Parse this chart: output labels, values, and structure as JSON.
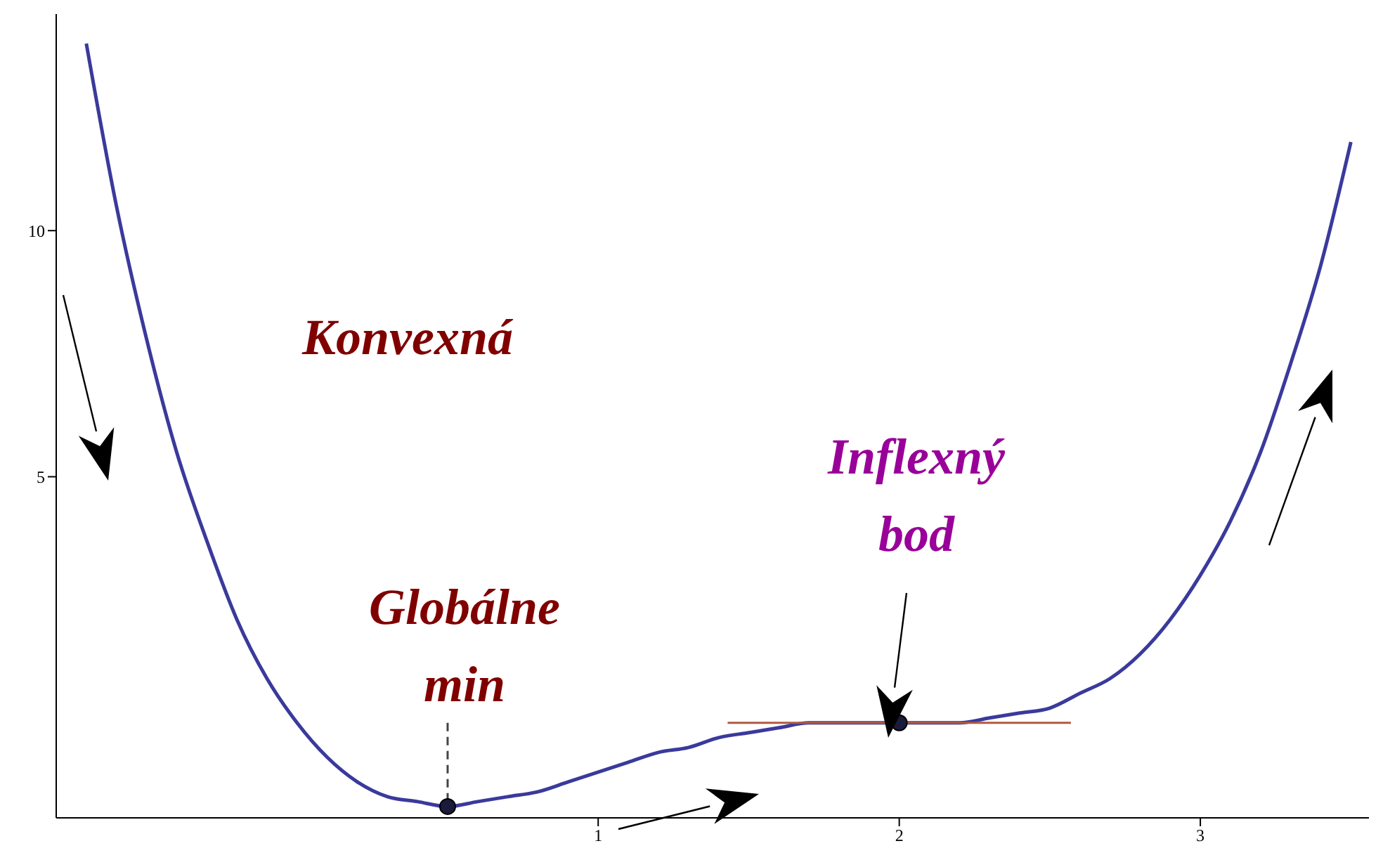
{
  "chart_data": {
    "type": "line",
    "xlim": [
      -0.8,
      3.56
    ],
    "ylim": [
      -1.93,
      14.4
    ],
    "xticks": [
      1,
      2,
      3
    ],
    "yticks": [
      5,
      10
    ],
    "grid": false,
    "annotations": [
      "Konvexná",
      {
        "text": "Globálne min",
        "x": 0.5,
        "y": -1.7
      },
      "Inflexný bod"
    ],
    "series": [
      {
        "color": "#3a3a9c",
        "x": [
          -0.7,
          -0.6,
          -0.5,
          -0.4,
          -0.3,
          -0.2,
          -0.1,
          0,
          0.1,
          0.2,
          0.3,
          0.4,
          0.5,
          0.6,
          0.7,
          0.8,
          0.9,
          1.0,
          1.1,
          1.2,
          1.3,
          1.4,
          1.5,
          1.6,
          1.7,
          1.8,
          1.9,
          2.0,
          2.1,
          2.2,
          2.3,
          2.4,
          2.5,
          2.6,
          2.7,
          2.8,
          2.9,
          3.0,
          3.1,
          3.2,
          3.3,
          3.4,
          3.5
        ],
        "values": [
          13.8,
          10.5,
          7.8,
          5.5,
          3.7,
          2.1,
          0.9,
          0,
          -0.7,
          -1.2,
          -1.5,
          -1.6,
          -1.7,
          -1.6,
          -1.5,
          -1.4,
          -1.2,
          -1.0,
          -0.8,
          -0.6,
          -0.5,
          -0.3,
          -0.2,
          -0.1,
          0,
          0,
          0,
          0,
          0,
          0,
          0.1,
          0.2,
          0.3,
          0.6,
          0.9,
          1.4,
          2.1,
          3.0,
          4.1,
          5.5,
          7.3,
          9.3,
          11.8
        ]
      },
      {
        "type": "line",
        "color": "#b05a40",
        "x": [
          1.43,
          2.57
        ],
        "values": [
          0,
          0
        ]
      },
      {
        "type": "line",
        "color": "#444444",
        "line_style": "dashed",
        "x": [
          0.5,
          0.5
        ],
        "values": [
          0,
          -1.7
        ]
      },
      {
        "type": "scatter",
        "color": "#1a1a3a",
        "marker": "circle",
        "x": [
          0.5,
          2
        ],
        "values": [
          -1.7,
          0
        ]
      }
    ]
  }
}
